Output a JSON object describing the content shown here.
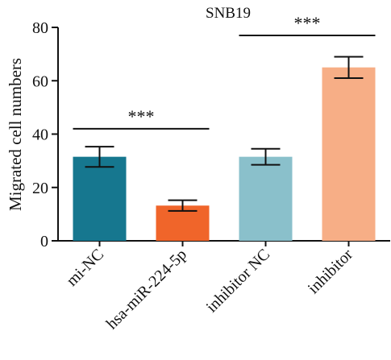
{
  "chart_data": {
    "type": "bar",
    "title": "SNB19",
    "ylabel": "Migrated cell numbers",
    "xlabel": "",
    "ylim": [
      0,
      80
    ],
    "yticks": [
      0,
      20,
      40,
      60,
      80
    ],
    "grid": false,
    "categories": [
      "mi-NC",
      "hsa-miR-224-5p",
      "inhibitor NC",
      "inhibitor"
    ],
    "values": [
      31.5,
      13.2,
      31.5,
      65.0
    ],
    "error": [
      3.8,
      2.0,
      3.0,
      4.0
    ],
    "colors": [
      "#16778f",
      "#f0652a",
      "#8ac0cb",
      "#f7ae86"
    ],
    "significance": [
      {
        "from": 0,
        "to": 1,
        "label": "***",
        "y": 42
      },
      {
        "from": 2,
        "to": 3,
        "label": "***",
        "y": 77
      }
    ]
  }
}
